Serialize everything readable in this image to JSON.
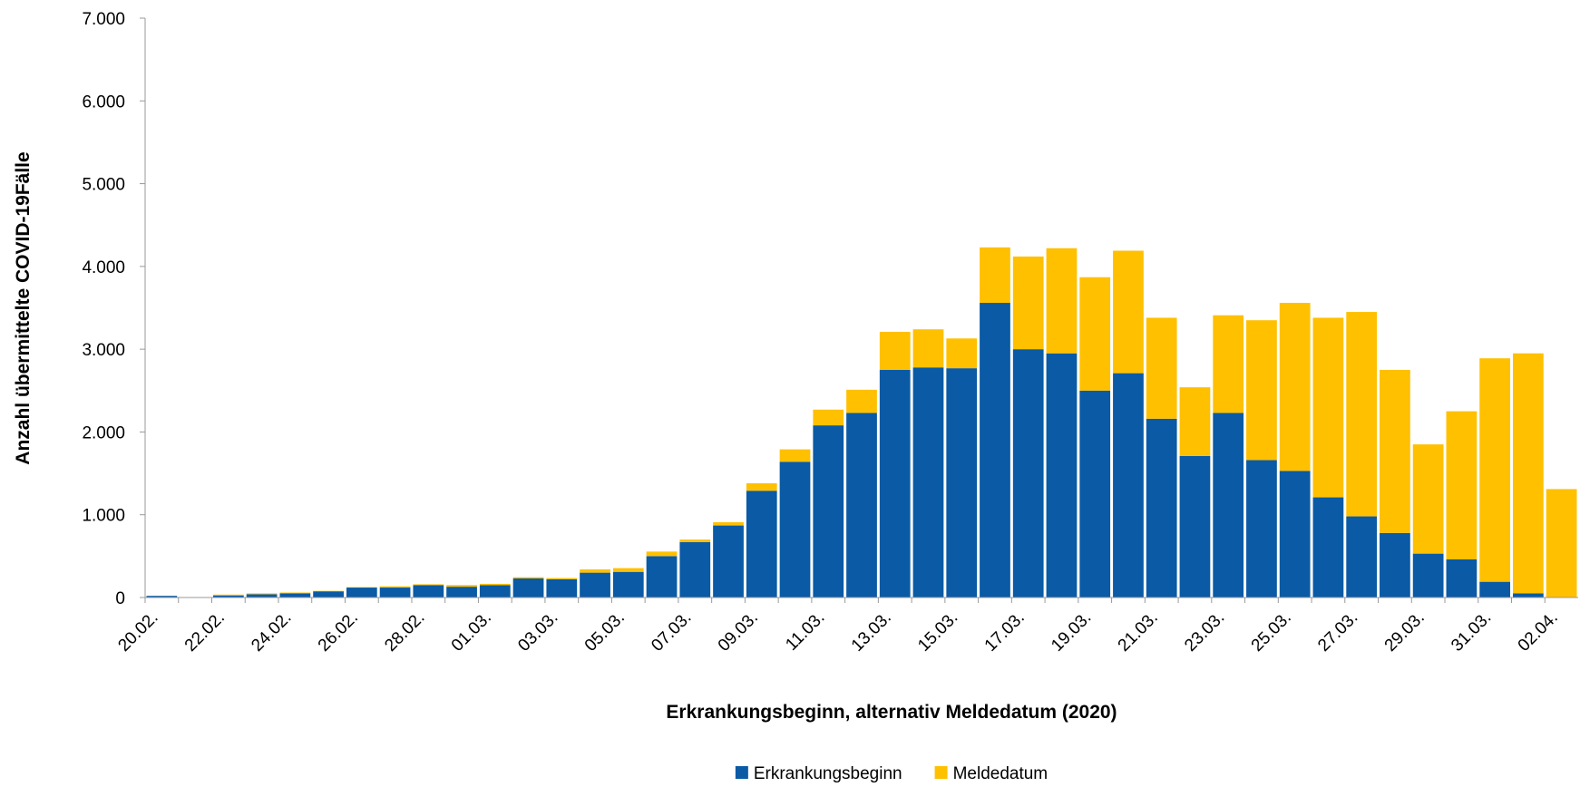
{
  "chart_data": {
    "type": "bar",
    "stacked": true,
    "x_label": "Erkrankungsbeginn, alternativ Meldedatum (2020)",
    "y_label": "Anzahl übermittelte COVID-19Fälle",
    "categories": [
      "20.02.",
      null,
      "22.02.",
      null,
      "24.02.",
      null,
      "26.02.",
      null,
      "28.02.",
      null,
      "01.03.",
      null,
      "03.03.",
      null,
      "05.03.",
      null,
      "07.03.",
      null,
      "09.03.",
      null,
      "11.03.",
      null,
      "13.03.",
      null,
      "15.03.",
      null,
      "17.03.",
      null,
      "19.03.",
      null,
      "21.03.",
      null,
      "23.03.",
      null,
      "25.03.",
      null,
      "27.03.",
      null,
      "29.03.",
      null,
      "31.03.",
      null,
      "02.04."
    ],
    "series": [
      {
        "name": "Erkrankungsbeginn",
        "color": "#0a5aa5",
        "values": [
          20,
          0,
          25,
          40,
          50,
          75,
          120,
          120,
          150,
          130,
          150,
          230,
          220,
          300,
          310,
          500,
          670,
          870,
          1290,
          1640,
          2080,
          2230,
          2750,
          2780,
          2770,
          3560,
          3000,
          2950,
          2500,
          2710,
          2160,
          1710,
          2230,
          1660,
          1530,
          1210,
          980,
          780,
          530,
          460,
          190,
          50,
          0
        ]
      },
      {
        "name": "Meldedatum",
        "color": "#ffc000",
        "values": [
          0,
          0,
          10,
          10,
          10,
          5,
          5,
          15,
          10,
          20,
          15,
          15,
          15,
          40,
          45,
          55,
          30,
          40,
          90,
          150,
          190,
          280,
          460,
          460,
          360,
          670,
          1120,
          1270,
          1370,
          1480,
          1220,
          830,
          1180,
          1690,
          2030,
          2170,
          2470,
          1970,
          1320,
          1790,
          2700,
          2900,
          1310
        ]
      }
    ],
    "ylim": [
      0,
      7000
    ],
    "yticks": [
      0,
      {
        "value": 1000,
        "label": "1.000"
      },
      {
        "value": 2000,
        "label": "2.000"
      },
      {
        "value": 3000,
        "label": "3.000"
      },
      {
        "value": 4000,
        "label": "4.000"
      },
      {
        "value": 5000,
        "label": "5.000"
      },
      {
        "value": 6000,
        "label": "6.000"
      },
      {
        "value": 7000,
        "label": "7.000"
      }
    ],
    "grid": false,
    "legend": "bottom"
  }
}
